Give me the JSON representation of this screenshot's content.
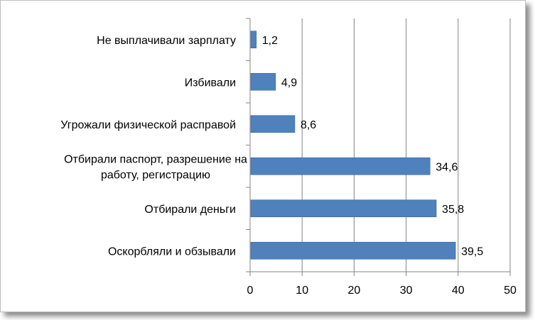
{
  "chart_data": {
    "type": "bar",
    "orientation": "horizontal",
    "categories": [
      [
        "Не выплачивали зарплату"
      ],
      [
        "Избивали"
      ],
      [
        "Угрожали физической расправой"
      ],
      [
        "Отбирали паспорт, разрешение на",
        "работу, регистрацию"
      ],
      [
        "Отбирали деньги"
      ],
      [
        "Оскорбляли и обзывали"
      ]
    ],
    "values": [
      1.2,
      4.9,
      8.6,
      34.6,
      35.8,
      39.5
    ],
    "value_labels": [
      "1,2",
      "4,9",
      "8,6",
      "34,6",
      "35,8",
      "39,5"
    ],
    "xlim": [
      0,
      50
    ],
    "xticks": [
      0,
      10,
      20,
      30,
      40,
      50
    ],
    "grid": true,
    "legend": "none",
    "bar_color": "#4f81bd",
    "grid_color": "#868686"
  }
}
